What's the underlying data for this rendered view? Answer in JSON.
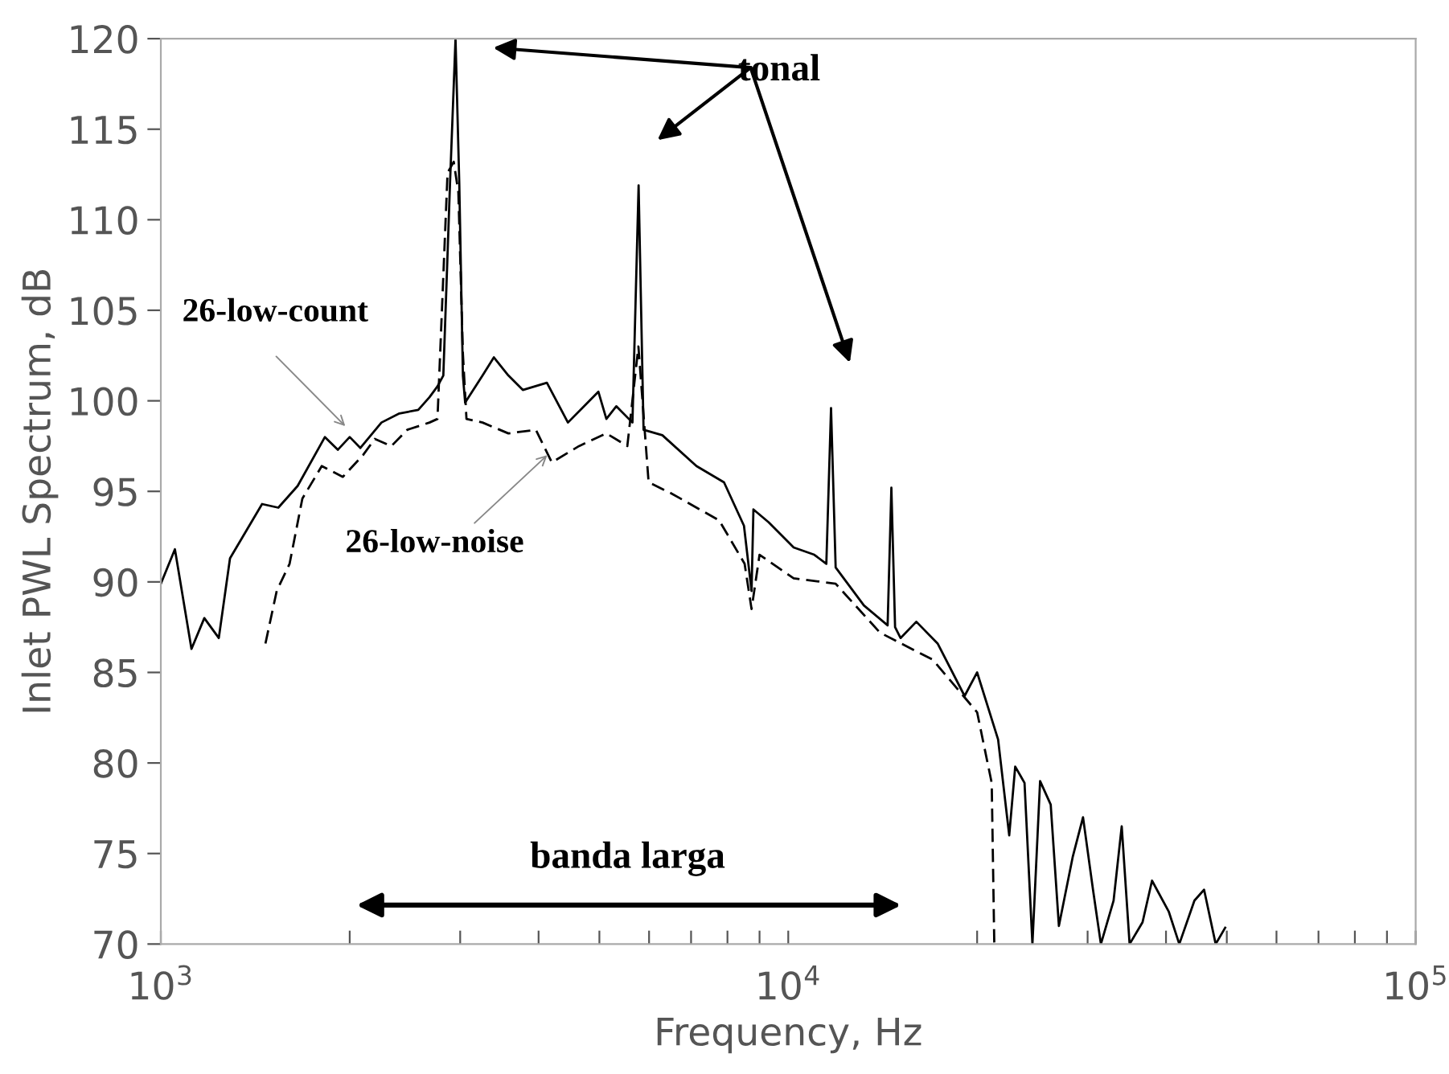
{
  "chart_data": {
    "type": "line",
    "xlabel": "Frequency, Hz",
    "ylabel": "Inlet PWL Spectrum, dB",
    "log": "x",
    "xlim": [
      1000,
      100000
    ],
    "ylim": [
      70,
      120
    ],
    "xticks": [
      {
        "value": 1000,
        "label": "10$^{3}$"
      },
      {
        "value": 2000,
        "label": null
      },
      {
        "value": 3000,
        "label": null
      },
      {
        "value": 4000,
        "label": null
      },
      {
        "value": 5000,
        "label": null
      },
      {
        "value": 6000,
        "label": null
      },
      {
        "value": 7000,
        "label": null
      },
      {
        "value": 8000,
        "label": null
      },
      {
        "value": 9000,
        "label": null
      },
      {
        "value": 10000,
        "label": "10$^{4}$"
      },
      {
        "value": 20000,
        "label": null
      },
      {
        "value": 30000,
        "label": null
      },
      {
        "value": 40000,
        "label": null
      },
      {
        "value": 50000,
        "label": null
      },
      {
        "value": 60000,
        "label": null
      },
      {
        "value": 70000,
        "label": null
      },
      {
        "value": 80000,
        "label": null
      },
      {
        "value": 90000,
        "label": null
      },
      {
        "value": 100000,
        "label": "10$^{5}$"
      }
    ],
    "yticks": [
      70,
      75,
      80,
      85,
      90,
      95,
      100,
      105,
      110,
      115,
      120
    ],
    "grid": false,
    "legend": false,
    "marker": "none",
    "series": [
      {
        "name": "26-low-count",
        "color": "#000000",
        "line_style": "solid",
        "x": [
          1000,
          1053,
          1119,
          1173,
          1237,
          1289,
          1450,
          1539,
          1652,
          1826,
          1915,
          2000,
          2080,
          2247,
          2400,
          2572,
          2680,
          2760,
          2820,
          2890,
          2949,
          2990,
          3030,
          3055,
          3257,
          3395,
          3580,
          3775,
          4124,
          4455,
          4982,
          5130,
          5320,
          5645,
          5774,
          5880,
          6300,
          7140,
          7900,
          8500,
          8740,
          8800,
          9300,
          10200,
          11000,
          11500,
          11700,
          11900,
          13200,
          14400,
          14600,
          14800,
          15100,
          16000,
          17300,
          19100,
          20000,
          21600,
          22500,
          23000,
          23800,
          24500,
          25200,
          26200,
          27000,
          28400,
          29500,
          30600,
          31500,
          33000,
          34000,
          35000,
          36700,
          38000,
          40400,
          42000,
          44400,
          46000,
          48000,
          49700
        ],
        "values": [
          89.9,
          91.8,
          86.3,
          88.0,
          86.9,
          91.3,
          94.3,
          94.1,
          95.3,
          98.0,
          97.3,
          98.0,
          97.4,
          98.8,
          99.3,
          99.5,
          100.2,
          100.8,
          101.4,
          112,
          120,
          112,
          101.4,
          99.9,
          101.4,
          102.4,
          101.4,
          100.6,
          101.0,
          98.8,
          100.5,
          99.0,
          99.7,
          98.8,
          111.9,
          98.4,
          98.1,
          96.4,
          95.5,
          93.1,
          89.5,
          94,
          93.3,
          91.9,
          91.5,
          91.0,
          99.6,
          90.8,
          88.7,
          87.6,
          95.2,
          87.5,
          86.9,
          87.8,
          86.6,
          83.7,
          85,
          81.3,
          76,
          79.8,
          78.9,
          70,
          79,
          77.7,
          71,
          74.8,
          77,
          73.0,
          70,
          72.4,
          76.5,
          70,
          71.2,
          73.5,
          71.8,
          70,
          72.4,
          73,
          70,
          70.9
        ]
      },
      {
        "name": "26-low-noise",
        "color": "#000000",
        "line_style": "dashed",
        "x": [
          1468,
          1530,
          1604,
          1681,
          1805,
          1950,
          2100,
          2193,
          2330,
          2470,
          2680,
          2760,
          2864,
          2930,
          2980,
          3030,
          3070,
          3257,
          3580,
          3960,
          4200,
          4640,
          5130,
          5540,
          5770,
          5990,
          6500,
          7760,
          8520,
          8740,
          9000,
          10200,
          11900,
          14000,
          17000,
          20000,
          21100,
          21300
        ],
        "values": [
          86.6,
          89.5,
          91.0,
          94.6,
          96.4,
          95.8,
          97.0,
          97.9,
          97.5,
          98.4,
          98.8,
          99.0,
          112.6,
          113.2,
          111.5,
          102.6,
          99.0,
          98.8,
          98.2,
          98.4,
          96.6,
          97.5,
          98.2,
          97.5,
          103,
          95.5,
          94.9,
          93.4,
          91.0,
          88.5,
          91.5,
          90.2,
          89.9,
          87.2,
          85.7,
          82.8,
          78.9,
          70.0
        ]
      }
    ],
    "annotations": [
      "tonal",
      "banda larga"
    ]
  }
}
